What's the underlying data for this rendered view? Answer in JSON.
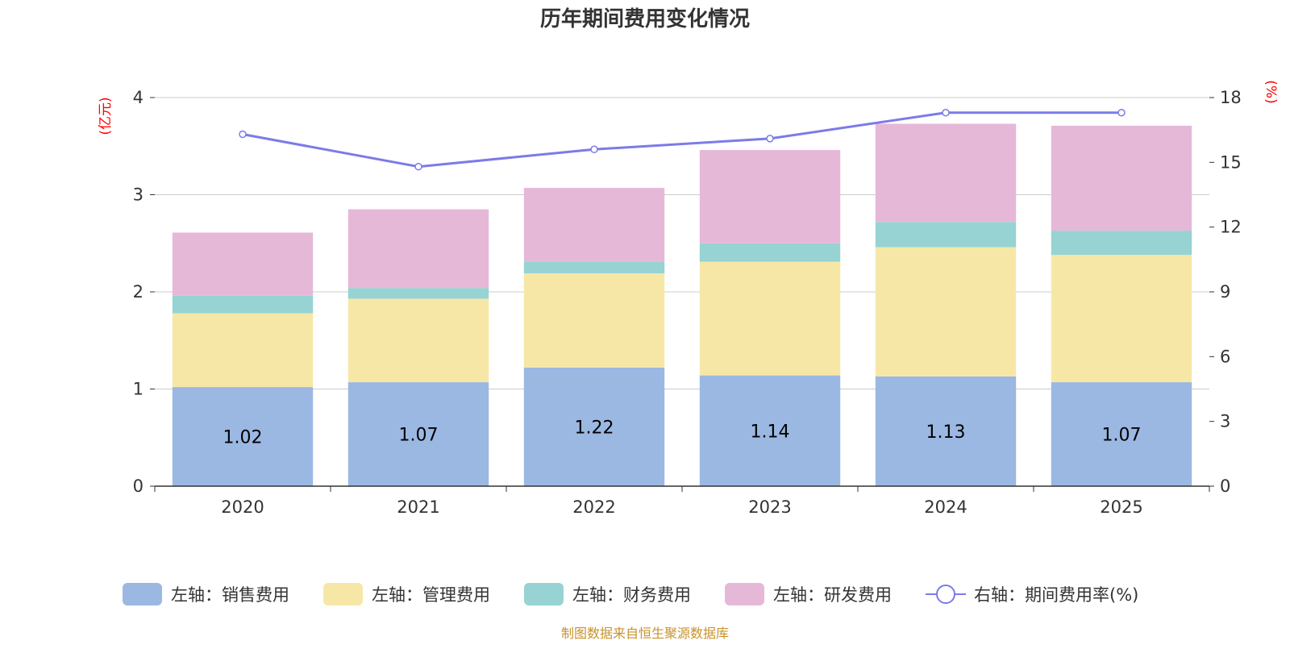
{
  "chart_data": {
    "type": "bar",
    "stacked": true,
    "title": "历年期间费用变化情况",
    "categories": [
      "2020",
      "2021",
      "2022",
      "2023",
      "2024",
      "2025"
    ],
    "left_axis": {
      "unit": "(亿元)",
      "range": [
        0,
        4
      ],
      "ticks": [
        "0",
        "1",
        "2",
        "3",
        "4"
      ]
    },
    "right_axis": {
      "unit": "(%)",
      "range": [
        0,
        18
      ],
      "ticks": [
        "0",
        "3",
        "6",
        "9",
        "12",
        "15",
        "18"
      ]
    },
    "series": [
      {
        "name": "左轴：销售费用",
        "axis": "left",
        "color": "#9bb8e2",
        "values": [
          1.02,
          1.07,
          1.22,
          1.14,
          1.13,
          1.07
        ],
        "data_labels": [
          "1.02",
          "1.07",
          "1.22",
          "1.14",
          "1.13",
          "1.07"
        ]
      },
      {
        "name": "左轴：管理费用",
        "axis": "left",
        "color": "#f7e7a7",
        "values": [
          0.76,
          0.86,
          0.97,
          1.17,
          1.33,
          1.31
        ]
      },
      {
        "name": "左轴：财务费用",
        "axis": "left",
        "color": "#97d3d3",
        "values": [
          0.18,
          0.11,
          0.12,
          0.19,
          0.26,
          0.25
        ]
      },
      {
        "name": "左轴：研发费用",
        "axis": "left",
        "color": "#e6b8d8",
        "values": [
          0.65,
          0.81,
          0.76,
          0.96,
          1.01,
          1.08
        ]
      },
      {
        "name": "右轴：期间费用率(%)",
        "axis": "right",
        "type": "line",
        "color": "#7b7be8",
        "values": [
          16.3,
          14.8,
          15.6,
          16.1,
          17.3,
          17.3
        ]
      }
    ],
    "legend_position": "bottom",
    "grid": true
  },
  "footer": {
    "source": "制图数据来自恒生聚源数据库"
  }
}
